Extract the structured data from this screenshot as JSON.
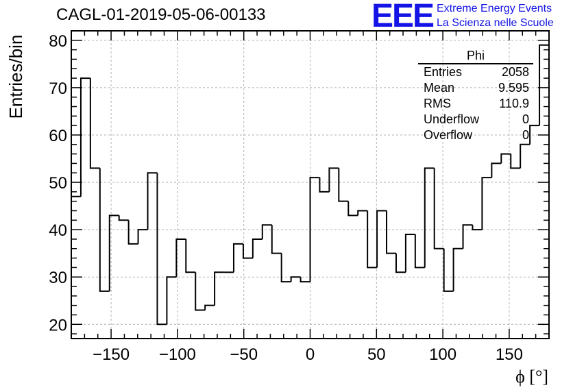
{
  "header": {
    "title": "CAGL-01-2019-05-06-00133",
    "logo_text": "EEE",
    "logo_line1": "Extreme Energy Events",
    "logo_line2": "La Scienza nelle Scuole"
  },
  "stats_box": {
    "title": "Phi",
    "rows": [
      {
        "label": "Entries",
        "value": "2058"
      },
      {
        "label": "Mean",
        "value": "9.595"
      },
      {
        "label": "RMS",
        "value": "110.9"
      },
      {
        "label": "Underflow",
        "value": "0"
      },
      {
        "label": "Overflow",
        "value": "0"
      }
    ]
  },
  "colors": {
    "accent": "#1414e6",
    "line": "#000000",
    "grid": "#b0b0b0"
  },
  "chart_data": {
    "type": "histogram",
    "title": "CAGL-01-2019-05-06-00133",
    "xlabel": "ϕ [°]",
    "ylabel": "Entries/bin",
    "xlim": [
      -180,
      180
    ],
    "ylim": [
      17,
      82
    ],
    "bin_width": 7.2,
    "bin_edges_start": -180,
    "values": [
      47,
      72,
      53,
      27,
      43,
      42,
      37,
      40,
      52,
      20,
      30,
      38,
      31,
      23,
      24,
      31,
      31,
      37,
      34,
      38,
      41,
      35,
      29,
      30,
      29,
      51,
      48,
      53,
      46,
      43,
      44,
      32,
      44,
      35,
      31,
      39,
      32,
      53,
      36,
      27,
      36,
      41,
      40,
      51,
      54,
      56,
      53,
      58,
      62,
      79
    ],
    "x_ticks": [
      -150,
      -100,
      -50,
      0,
      50,
      100,
      150
    ],
    "x_tick_labels": [
      "−150",
      "−100",
      "−50",
      "0",
      "50",
      "100",
      "150"
    ],
    "y_ticks": [
      20,
      30,
      40,
      50,
      60,
      70,
      80
    ],
    "y_tick_labels": [
      "20",
      "30",
      "40",
      "50",
      "60",
      "70",
      "80"
    ],
    "grid": true
  }
}
